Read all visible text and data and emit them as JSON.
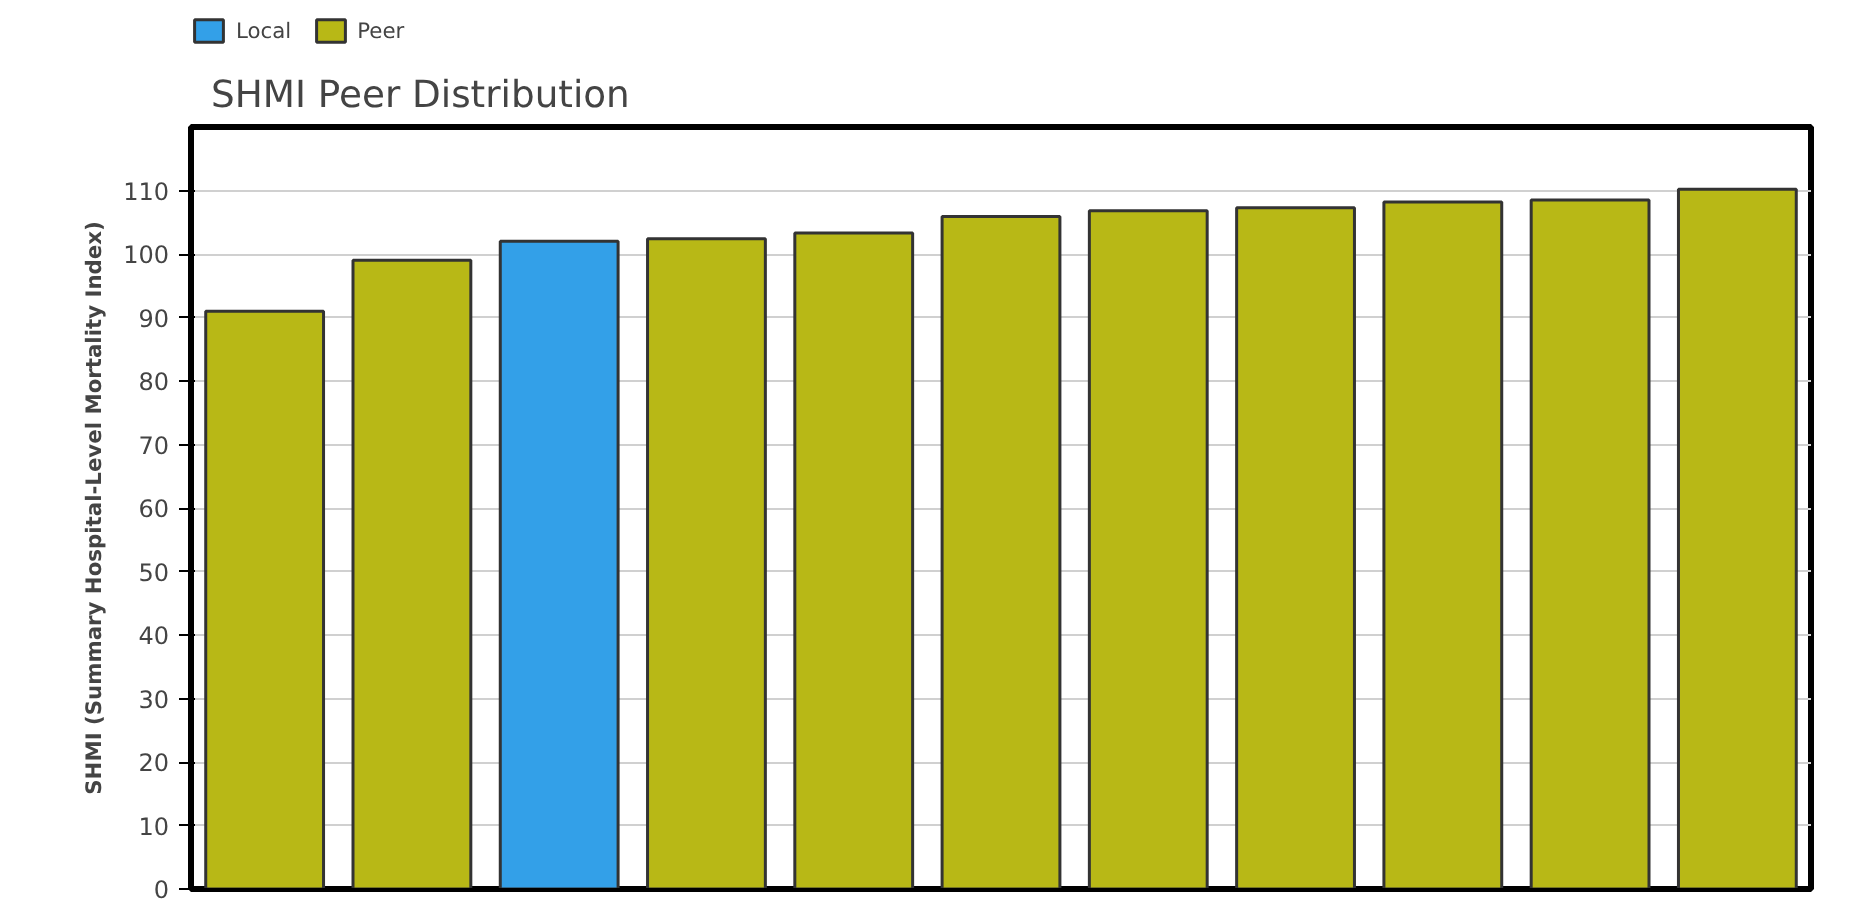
{
  "chart_data": {
    "type": "bar",
    "title": "SHMI Peer Distribution",
    "ylabel": "SHMI (Summary Hospital-Level Mortality Index)",
    "categories": [
      null,
      null,
      null,
      null,
      null,
      null,
      null,
      null,
      null,
      null,
      null
    ],
    "series": [
      {
        "name": "Local",
        "color": "#33a0e8",
        "values": [
          null,
          null,
          102,
          null,
          null,
          null,
          null,
          null,
          null,
          null,
          null
        ]
      },
      {
        "name": "Peer",
        "color": "#b8b816",
        "values": [
          91,
          99,
          null,
          102.4,
          103.3,
          105.9,
          106.8,
          107.3,
          108.2,
          108.5,
          110.2
        ]
      }
    ],
    "ylim": [
      0,
      120
    ],
    "yticks": [
      0,
      10,
      20,
      30,
      40,
      50,
      60,
      70,
      80,
      90,
      100,
      110
    ],
    "grid": "y",
    "legend": "top left",
    "tick_labels": "y"
  }
}
